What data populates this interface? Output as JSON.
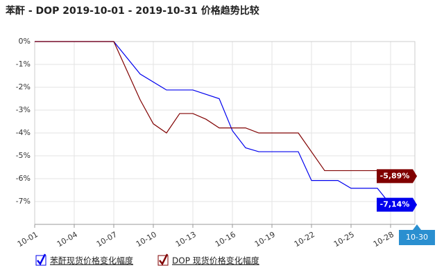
{
  "chart_data": {
    "type": "line",
    "title": "苯酐 - DOP 2019-10-01 - 2019-10-31 价格趋势比较",
    "xlim": [
      "10-01",
      "10-30"
    ],
    "xticks": [
      "10-01",
      "10-04",
      "10-07",
      "10-10",
      "10-13",
      "10-16",
      "10-19",
      "10-22",
      "10-25",
      "10-28"
    ],
    "ylim": [
      -8,
      0
    ],
    "yticks": [
      {
        "value": 0,
        "label": "0%"
      },
      {
        "value": -1,
        "label": "-1%"
      },
      {
        "value": -2,
        "label": "-2%"
      },
      {
        "value": -3,
        "label": "-3%"
      },
      {
        "value": -4,
        "label": "-4%"
      },
      {
        "value": -5,
        "label": "-5%"
      },
      {
        "value": -6,
        "label": "-6%"
      },
      {
        "value": -7,
        "label": "-7%"
      }
    ],
    "grid": true,
    "cursor_label": "10-30",
    "series": [
      {
        "name": "苯酐现货价格变化幅度",
        "color": "#0000ee",
        "x": [
          "10-01",
          "10-07",
          "10-09",
          "10-11",
          "10-13",
          "10-15",
          "10-16",
          "10-17",
          "10-18",
          "10-21",
          "10-22",
          "10-24",
          "10-25",
          "10-27",
          "10-28",
          "10-30"
        ],
        "values": [
          0,
          0,
          -1.42,
          -2.12,
          -2.12,
          -2.5,
          -3.9,
          -4.65,
          -4.82,
          -4.82,
          -6.08,
          -6.08,
          -6.42,
          -6.42,
          -7.14,
          -7.14
        ],
        "end_label": "-7,14%"
      },
      {
        "name": "DOP 现货价格变化幅度",
        "color": "#800000",
        "x": [
          "10-01",
          "10-07",
          "10-09",
          "10-10",
          "10-11",
          "10-12",
          "10-13",
          "10-14",
          "10-15",
          "10-17",
          "10-18",
          "10-21",
          "10-23",
          "10-29",
          "10-30"
        ],
        "values": [
          0,
          0,
          -2.55,
          -3.6,
          -4.0,
          -3.15,
          -3.15,
          -3.4,
          -3.78,
          -3.78,
          -4.0,
          -4.0,
          -5.65,
          -5.65,
          -5.89
        ],
        "end_label": "-5,89%"
      }
    ]
  }
}
